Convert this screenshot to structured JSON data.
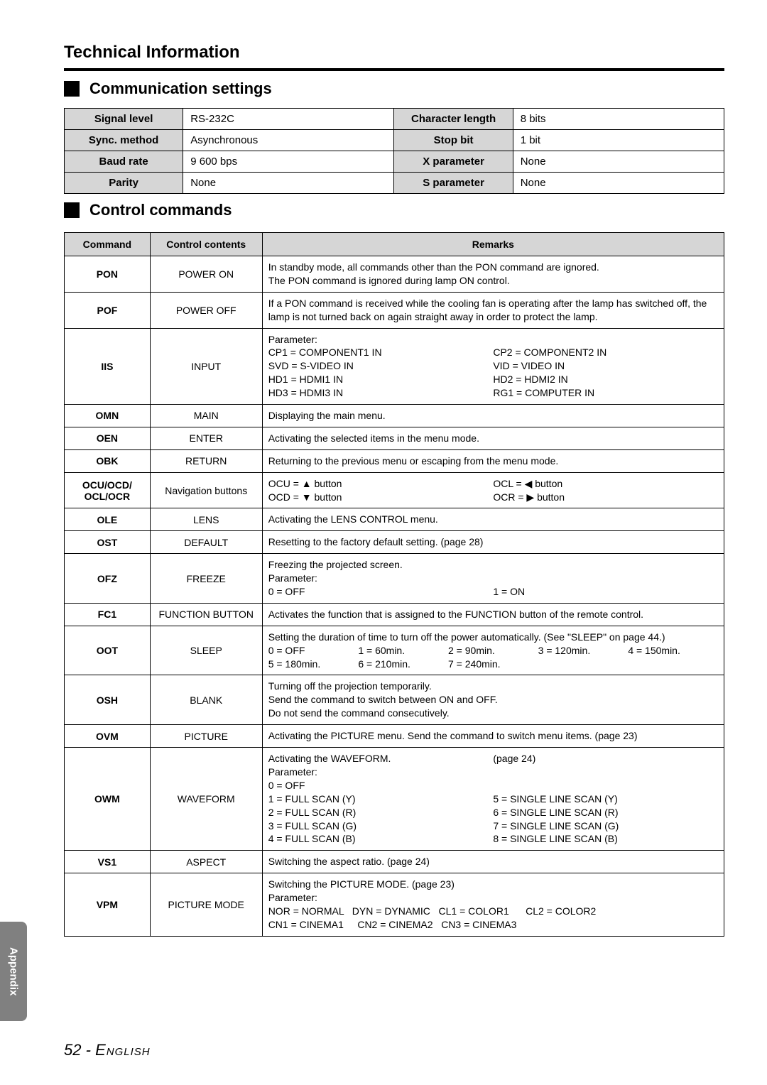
{
  "page": {
    "title": "Technical Information",
    "footer_tab": "Appendix",
    "page_number": "52",
    "page_lang": "English"
  },
  "sections": {
    "comm": "Communication settings",
    "ctrl": "Control commands"
  },
  "settings": {
    "r1l": "Signal level",
    "r1v": "RS-232C",
    "r1l2": "Character length",
    "r1v2": "8 bits",
    "r2l": "Sync. method",
    "r2v": "Asynchronous",
    "r2l2": "Stop bit",
    "r2v2": "1 bit",
    "r3l": "Baud rate",
    "r3v": "9 600 bps",
    "r3l2": "X parameter",
    "r3v2": "None",
    "r4l": "Parity",
    "r4v": "None",
    "r4l2": "S parameter",
    "r4v2": "None"
  },
  "cmd_headers": {
    "c1": "Command",
    "c2": "Control contents",
    "c3": "Remarks"
  },
  "cmds": {
    "pon": {
      "c": "PON",
      "n": "POWER ON",
      "r": "In standby mode, all commands other than the PON command are ignored.\nThe PON command is ignored during lamp ON control."
    },
    "pof": {
      "c": "POF",
      "n": "POWER OFF",
      "r": "If a PON command is received while the cooling fan is operating after the lamp has switched off, the lamp is not turned back on again straight away in order to protect the lamp."
    },
    "iis": {
      "c": "IIS",
      "n": "INPUT",
      "p_title": "Parameter:",
      "l1": "CP1 = COMPONENT1 IN",
      "r1": "CP2 = COMPONENT2 IN",
      "l2": "SVD = S-VIDEO IN",
      "r2": "VID = VIDEO IN",
      "l3": "HD1 = HDMI1 IN",
      "r3": "HD2 = HDMI2 IN",
      "l4": "HD3 = HDMI3 IN",
      "r4": "RG1 = COMPUTER IN"
    },
    "omn": {
      "c": "OMN",
      "n": "MAIN",
      "r": "Displaying the main menu."
    },
    "oen": {
      "c": "OEN",
      "n": "ENTER",
      "r": "Activating the selected items in the menu mode."
    },
    "obk": {
      "c": "OBK",
      "n": "RETURN",
      "r": "Returning to the previous menu or escaping from the menu mode."
    },
    "nav": {
      "c": "OCU/OCD/\nOCL/OCR",
      "n": "Navigation buttons",
      "l1": "OCU = ▲ button",
      "r1": "OCL = ◀ button",
      "l2": "OCD = ▼ button",
      "r2": "OCR = ▶ button"
    },
    "ole": {
      "c": "OLE",
      "n": "LENS",
      "r": "Activating the LENS CONTROL menu."
    },
    "ost": {
      "c": "OST",
      "n": "DEFAULT",
      "r": "Resetting to the factory default setting. (page 28)"
    },
    "ofz": {
      "c": "OFZ",
      "n": "FREEZE",
      "l1": "Freezing the projected screen.",
      "l2": "Parameter:",
      "l3": "0 = OFF",
      "r3": "1 = ON"
    },
    "fc1": {
      "c": "FC1",
      "n": "FUNCTION BUTTON",
      "r": "Activates the function that is assigned to the FUNCTION button of the remote control."
    },
    "oot": {
      "c": "OOT",
      "n": "SLEEP",
      "l1": "Setting the duration of time to turn off the power automatically. (See \"SLEEP\" on page 44.)",
      "row2a": "0 = OFF",
      "row2b": "1 = 60min.",
      "row2c": "2 = 90min.",
      "row2d": "3 = 120min.",
      "row2e": "4 = 150min.",
      "row3a": "5 = 180min.",
      "row3b": "6 = 210min.",
      "row3c": "7 = 240min."
    },
    "osh": {
      "c": "OSH",
      "n": "BLANK",
      "r": "Turning off the projection temporarily.\nSend the command to switch between ON and OFF.\nDo not send the command consecutively."
    },
    "ovm": {
      "c": "OVM",
      "n": "PICTURE",
      "r": "Activating the PICTURE menu. Send the command to switch menu items. (page 23)"
    },
    "owm": {
      "c": "OWM",
      "n": "WAVEFORM",
      "l1": "Activating the WAVEFORM.",
      "r1": "(page 24)",
      "l2": "Parameter:",
      "l3": "0 = OFF",
      "l4": "1 = FULL SCAN (Y)",
      "r4": "5 = SINGLE LINE SCAN (Y)",
      "l5": "2 = FULL SCAN (R)",
      "r5": "6 = SINGLE LINE SCAN (R)",
      "l6": "3 = FULL SCAN (G)",
      "r6": "7 = SINGLE LINE SCAN (G)",
      "l7": "4 = FULL SCAN (B)",
      "r7": "8 = SINGLE LINE SCAN (B)"
    },
    "vs1": {
      "c": "VS1",
      "n": "ASPECT",
      "r": "Switching the aspect ratio. (page 24)"
    },
    "vpm": {
      "c": "VPM",
      "n": "PICTURE MODE",
      "l1": "Switching the PICTURE MODE. (page 23)",
      "l2": "Parameter:",
      "l3": "NOR = NORMAL   DYN = DYNAMIC   CL1 = COLOR1      CL2 = COLOR2",
      "l4": "CN1 = CINEMA1     CN2 = CINEMA2   CN3 = CINEMA3"
    }
  }
}
